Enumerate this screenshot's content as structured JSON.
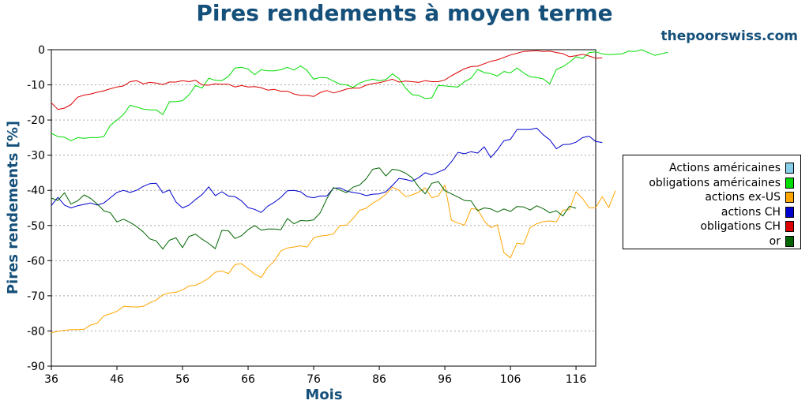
{
  "page": {
    "title": "Pires rendements à moyen terme",
    "site": "thepoorswiss.com"
  },
  "chart_data": {
    "type": "line",
    "title": "Pires rendements à moyen terme",
    "xlabel": "Mois",
    "ylabel": "Pires rendements [%]",
    "xlim": [
      36,
      119
    ],
    "ylim": [
      -90,
      0
    ],
    "x_ticks": [
      36,
      46,
      56,
      66,
      76,
      86,
      96,
      106,
      116
    ],
    "y_ticks": [
      0,
      -10,
      -20,
      -30,
      -40,
      -50,
      -60,
      -70,
      -80,
      -90
    ],
    "grid": "horizontal dotted",
    "legend_position": "right",
    "x_start": 36,
    "series": [
      {
        "name": "Actions américaines",
        "color": "#87ceeb",
        "values": []
      },
      {
        "name": "obligations américaines",
        "color": "#00dd00",
        "values": [
          -23.8,
          -24.7,
          -24.9,
          -25.9,
          -25.0,
          -25.2,
          -25.0,
          -25.0,
          -24.7,
          -21.5,
          -20.0,
          -18.4,
          -15.8,
          -16.3,
          -16.9,
          -17.1,
          -17.1,
          -18.5,
          -14.8,
          -14.8,
          -14.5,
          -12.8,
          -10.2,
          -10.9,
          -8.1,
          -8.7,
          -8.8,
          -7.6,
          -5.2,
          -5.0,
          -5.5,
          -7.1,
          -5.7,
          -6.0,
          -6.0,
          -5.7,
          -5.0,
          -5.8,
          -4.6,
          -5.9,
          -8.4,
          -7.9,
          -8.0,
          -8.9,
          -9.8,
          -10.0,
          -10.7,
          -9.5,
          -8.8,
          -8.4,
          -8.8,
          -8.5,
          -6.9,
          -8.2,
          -10.9,
          -12.8,
          -13.0,
          -13.9,
          -13.7,
          -10.2,
          -10.3,
          -10.5,
          -10.6,
          -9.1,
          -8.1,
          -5.6,
          -6.5,
          -6.8,
          -7.5,
          -6.2,
          -6.6,
          -5.2,
          -6.6,
          -7.7,
          -7.9,
          -8.3,
          -9.7,
          -5.6,
          -4.8,
          -3.6,
          -2.0,
          -2.5,
          -0.8,
          -0.6,
          -1.2,
          -1.4,
          -1.3,
          -1.2,
          -0.4,
          -0.5,
          1.2,
          -0.8,
          -1.6,
          -1.2,
          -0.7
        ]
      },
      {
        "name": "actions ex-US",
        "color": "#ffa500",
        "values": [
          -80.5,
          -80.1,
          -79.8,
          -79.6,
          -79.6,
          -79.5,
          -78.3,
          -77.8,
          -75.7,
          -75.1,
          -74.4,
          -73.0,
          -73.1,
          -73.2,
          -73.0,
          -72.0,
          -71.2,
          -69.7,
          -69.2,
          -69.0,
          -68.3,
          -67.2,
          -67.0,
          -66.1,
          -65.0,
          -63.3,
          -62.9,
          -63.7,
          -61.1,
          -60.9,
          -62.3,
          -63.8,
          -64.8,
          -61.9,
          -60.1,
          -57.2,
          -56.4,
          -56.1,
          -55.8,
          -56.1,
          -53.5,
          -53.0,
          -52.8,
          -52.4,
          -50.0,
          -49.9,
          -48.0,
          -45.7,
          -45.1,
          -43.6,
          -42.6,
          -41.1,
          -39.1,
          -40.0,
          -41.8,
          -41.3,
          -40.5,
          -39.3,
          -42.1,
          -41.6,
          -38.5,
          -48.5,
          -49.3,
          -49.9,
          -45.2,
          -45.4,
          -48.7,
          -50.6,
          -49.8,
          -57.7,
          -59.2,
          -55.0,
          -55.3,
          -50.6,
          -49.5,
          -48.9,
          -48.7,
          -49.0,
          -45.6,
          -45.5,
          -40.4,
          -42.3,
          -45.0,
          -44.9,
          -41.8,
          -44.9,
          -40.1
        ]
      },
      {
        "name": "actions CH",
        "color": "#0000cc",
        "values": [
          -44.3,
          -42.0,
          -44.2,
          -45.0,
          -44.4,
          -44.0,
          -43.6,
          -44.2,
          -43.6,
          -42.1,
          -40.6,
          -40.0,
          -40.6,
          -40.0,
          -38.9,
          -38.1,
          -38.0,
          -40.7,
          -39.9,
          -43.3,
          -45.0,
          -44.2,
          -42.6,
          -41.2,
          -39.0,
          -41.5,
          -40.4,
          -41.6,
          -41.8,
          -43.0,
          -44.9,
          -45.4,
          -46.3,
          -44.5,
          -43.4,
          -42.0,
          -40.1,
          -40.0,
          -40.4,
          -41.8,
          -42.1,
          -41.6,
          -41.6,
          -39.4,
          -39.3,
          -40.2,
          -40.6,
          -40.9,
          -41.5,
          -41.1,
          -41.0,
          -40.4,
          -38.6,
          -36.6,
          -36.9,
          -37.4,
          -36.4,
          -35.0,
          -35.6,
          -34.8,
          -34.0,
          -31.9,
          -29.2,
          -29.6,
          -29.0,
          -29.4,
          -27.6,
          -30.7,
          -28.5,
          -25.9,
          -25.5,
          -22.7,
          -22.7,
          -22.7,
          -22.3,
          -24.2,
          -25.6,
          -28.2,
          -27.0,
          -26.9,
          -26.3,
          -25.0,
          -24.6,
          -26.1,
          -26.4
        ]
      },
      {
        "name": "obligations CH",
        "color": "#dd0000",
        "values": [
          -15.1,
          -17.0,
          -16.6,
          -15.6,
          -13.5,
          -12.9,
          -12.6,
          -12.1,
          -11.7,
          -11.1,
          -10.6,
          -10.3,
          -9.1,
          -8.8,
          -9.7,
          -9.3,
          -9.5,
          -9.9,
          -9.2,
          -9.2,
          -8.8,
          -9.1,
          -8.7,
          -10.0,
          -10.1,
          -9.7,
          -9.8,
          -9.8,
          -10.6,
          -10.2,
          -10.6,
          -10.5,
          -10.8,
          -11.5,
          -11.3,
          -11.8,
          -11.8,
          -12.6,
          -13.0,
          -13.0,
          -13.3,
          -12.2,
          -11.6,
          -12.3,
          -11.8,
          -11.2,
          -10.9,
          -10.9,
          -10.1,
          -9.6,
          -9.4,
          -8.9,
          -8.4,
          -9.2,
          -8.9,
          -9.1,
          -9.3,
          -8.8,
          -9.1,
          -9.1,
          -8.6,
          -7.4,
          -6.4,
          -5.4,
          -4.8,
          -4.7,
          -4.0,
          -3.3,
          -2.9,
          -2.2,
          -1.5,
          -1.0,
          -0.5,
          -0.4,
          -0.3,
          -0.5,
          -0.4,
          -0.8,
          -1.1,
          -2.0,
          -1.7,
          -1.3,
          -1.8,
          -2.4,
          -2.3
        ]
      },
      {
        "name": "or",
        "color": "#006400",
        "values": [
          -42.2,
          -42.9,
          -40.7,
          -43.9,
          -43.0,
          -41.3,
          -42.3,
          -43.9,
          -45.8,
          -46.4,
          -49.0,
          -48.2,
          -49.1,
          -50.3,
          -51.8,
          -53.8,
          -54.4,
          -56.7,
          -54.2,
          -53.5,
          -56.3,
          -53.1,
          -52.5,
          -53.9,
          -55.1,
          -56.6,
          -51.4,
          -51.5,
          -53.7,
          -52.9,
          -51.2,
          -50.0,
          -51.3,
          -51.0,
          -51.0,
          -51.2,
          -48.0,
          -49.5,
          -48.6,
          -48.7,
          -48.4,
          -46.4,
          -42.4,
          -39.2,
          -39.9,
          -40.7,
          -39.1,
          -38.5,
          -36.7,
          -34.0,
          -33.6,
          -35.9,
          -34.0,
          -34.3,
          -35.1,
          -36.4,
          -39.0,
          -41.0,
          -38.0,
          -37.5,
          -40.1,
          -41.0,
          -41.9,
          -42.9,
          -43.0,
          -45.8,
          -45.0,
          -45.3,
          -46.2,
          -45.3,
          -46.0,
          -44.6,
          -44.7,
          -45.6,
          -44.4,
          -45.2,
          -46.4,
          -45.8,
          -47.3,
          -44.5,
          -45.1
        ]
      }
    ]
  }
}
